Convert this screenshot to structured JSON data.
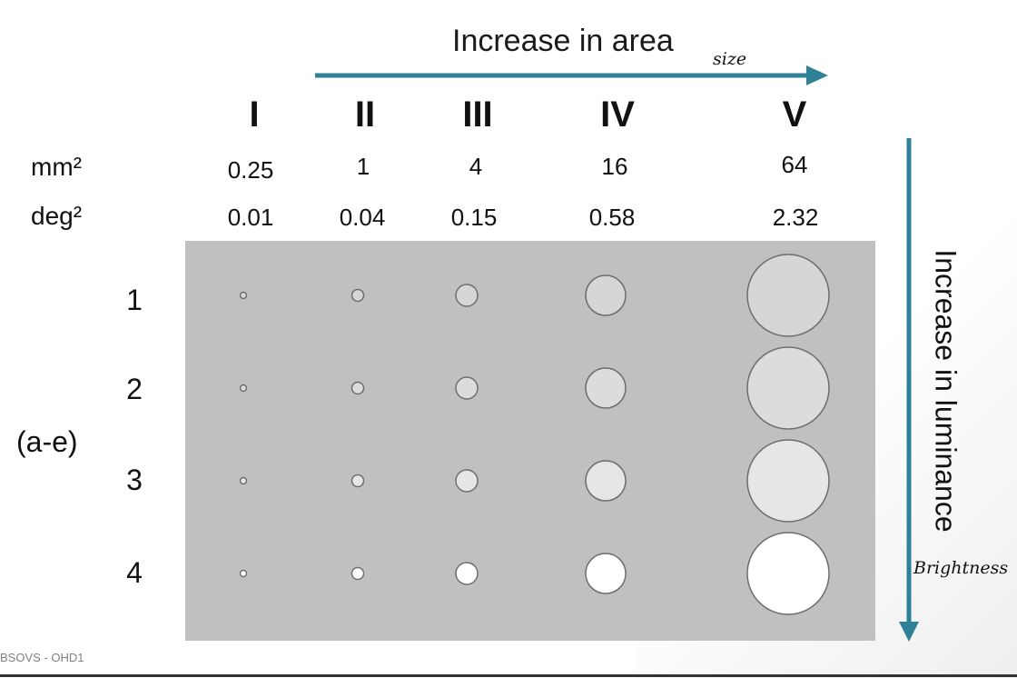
{
  "title": "Increase in area",
  "vertical_label": "Increase in luminance",
  "handwritten": {
    "size_note": "size",
    "brightness_note": "Brightness"
  },
  "size_labels": [
    "I",
    "II",
    "III",
    "IV",
    "V"
  ],
  "row_labels": {
    "area_mm": "mm²",
    "area_deg": "deg²"
  },
  "area_mm2": [
    "0.25",
    "1",
    "4",
    "16",
    "64"
  ],
  "area_deg2": [
    "0.01",
    "0.04",
    "0.15",
    "0.58",
    "2.32"
  ],
  "intensity_levels": [
    "1",
    "2",
    "3",
    "4"
  ],
  "filter_range": "(a-e)",
  "footer": "BSOVS - OHD1",
  "colors": {
    "accent_arrow": "#2f8198",
    "panel": "#c0c0c0",
    "level_fills": [
      "#d6d6d6",
      "#dcdcdc",
      "#e6e6e6",
      "#ffffff"
    ],
    "circle_stroke": "#6e6e6e"
  }
}
